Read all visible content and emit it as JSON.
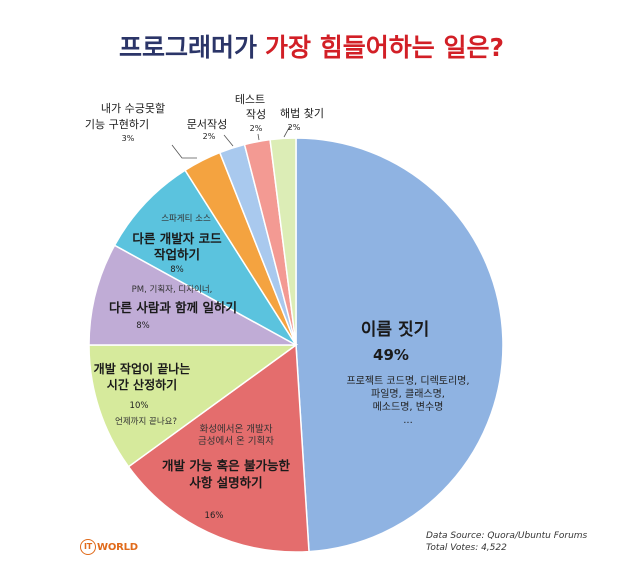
{
  "title": {
    "part1": "프로그래머가",
    "part2": "가장 힘들어하는 일은?"
  },
  "chart_data": {
    "type": "pie",
    "slices": [
      {
        "label": "이름 짓기",
        "value": 49,
        "value_label": "49%",
        "color": "#8fb3e2",
        "note": [
          "프로젝트 코드명, 디렉토리명,",
          "파일명, 클래스명,",
          "메소드명, 변수명",
          "..."
        ]
      },
      {
        "label": "개발 가능 혹은 불가능한 사항 설명하기",
        "value": 16,
        "value_label": "16%",
        "color": "#e46d6d",
        "note": [
          "화성에서온 개발자",
          "금성에서 온 기획자"
        ]
      },
      {
        "label": "개발 작업이 끝나는 시간 산정하기",
        "value": 10,
        "value_label": "10%",
        "color": "#d6ea9c",
        "note": [
          "언제까지 끝나요?"
        ]
      },
      {
        "label": "다른 사람과 함께 일하기",
        "value": 8,
        "value_label": "8%",
        "color": "#c0acd6",
        "note": [
          "PM, 기획자, 디자이너,"
        ]
      },
      {
        "label": "다른 개발자 코드 작업하기",
        "value": 8,
        "value_label": "8%",
        "color": "#5bc3de",
        "note": [
          "스파게티 소스"
        ]
      },
      {
        "label": "내가 수긍못할 기능 구현하기",
        "value": 3,
        "value_label": "3%",
        "color": "#f4a340",
        "note": []
      },
      {
        "label": "문서작성",
        "value": 2,
        "value_label": "2%",
        "color": "#a9c9ee",
        "note": []
      },
      {
        "label": "테스트 작성",
        "value": 2,
        "value_label": "2%",
        "color": "#f39a93",
        "note": []
      },
      {
        "label": "해법 찾기",
        "value": 2,
        "value_label": "2%",
        "color": "#dcedb6",
        "note": []
      }
    ]
  },
  "source": {
    "line1": "Data Source: Quora/Ubuntu Forums",
    "line2": "Total Votes: 4,522"
  },
  "logo": {
    "ring": "IT",
    "text": "WORLD"
  }
}
